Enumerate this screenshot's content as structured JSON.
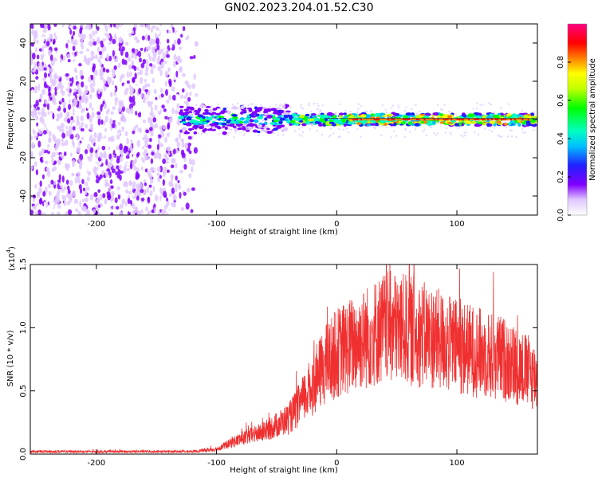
{
  "title": "GN02.2023.204.01.52.C30",
  "chart_data": [
    {
      "type": "heatmap",
      "xlabel": "Height of straight line (km)",
      "ylabel": "Frequency (Hz)",
      "xlim": [
        -255,
        167
      ],
      "ylim": [
        -50,
        50
      ],
      "xticks": [
        -200,
        -100,
        0,
        100
      ],
      "yticks": [
        -40,
        -20,
        0,
        20,
        40
      ],
      "colorbar": {
        "label": "Normalized spectral amplitude",
        "range": [
          0,
          1
        ],
        "ticks": [
          "0.0",
          "0.2",
          "0.4",
          "0.6",
          "0.8"
        ]
      },
      "description_regions": [
        {
          "x_range": [
            -255,
            -115
          ],
          "freq_range": [
            -50,
            50
          ],
          "amplitude": 0.1
        },
        {
          "x_range": [
            -130,
            167
          ],
          "center_freq": 0,
          "amplitude_peak_x": 100
        }
      ]
    },
    {
      "type": "line",
      "xlabel": "Height of straight line (km)",
      "ylabel": "SNR (10 * v/v)",
      "scale_label": "(x10",
      "scale_exponent": "4",
      "scale_suffix": ")",
      "xlim": [
        -255,
        167
      ],
      "ylim": [
        0,
        1.5
      ],
      "xticks": [
        -200,
        -100,
        0,
        100
      ],
      "yticks": [
        "0.0",
        "0.5",
        "1.0",
        "1.5"
      ],
      "color": "#f03030",
      "trend": {
        "x": [
          -255,
          -120,
          -100,
          -80,
          -60,
          -40,
          -30,
          -20,
          -10,
          0,
          10,
          20,
          30,
          40,
          50,
          60,
          80,
          100,
          120,
          140,
          160,
          167
        ],
        "y": [
          0.02,
          0.02,
          0.04,
          0.12,
          0.18,
          0.28,
          0.4,
          0.55,
          0.7,
          0.8,
          0.85,
          0.9,
          0.95,
          1.0,
          1.0,
          0.98,
          0.92,
          0.85,
          0.8,
          0.75,
          0.65,
          0.6
        ]
      }
    }
  ]
}
